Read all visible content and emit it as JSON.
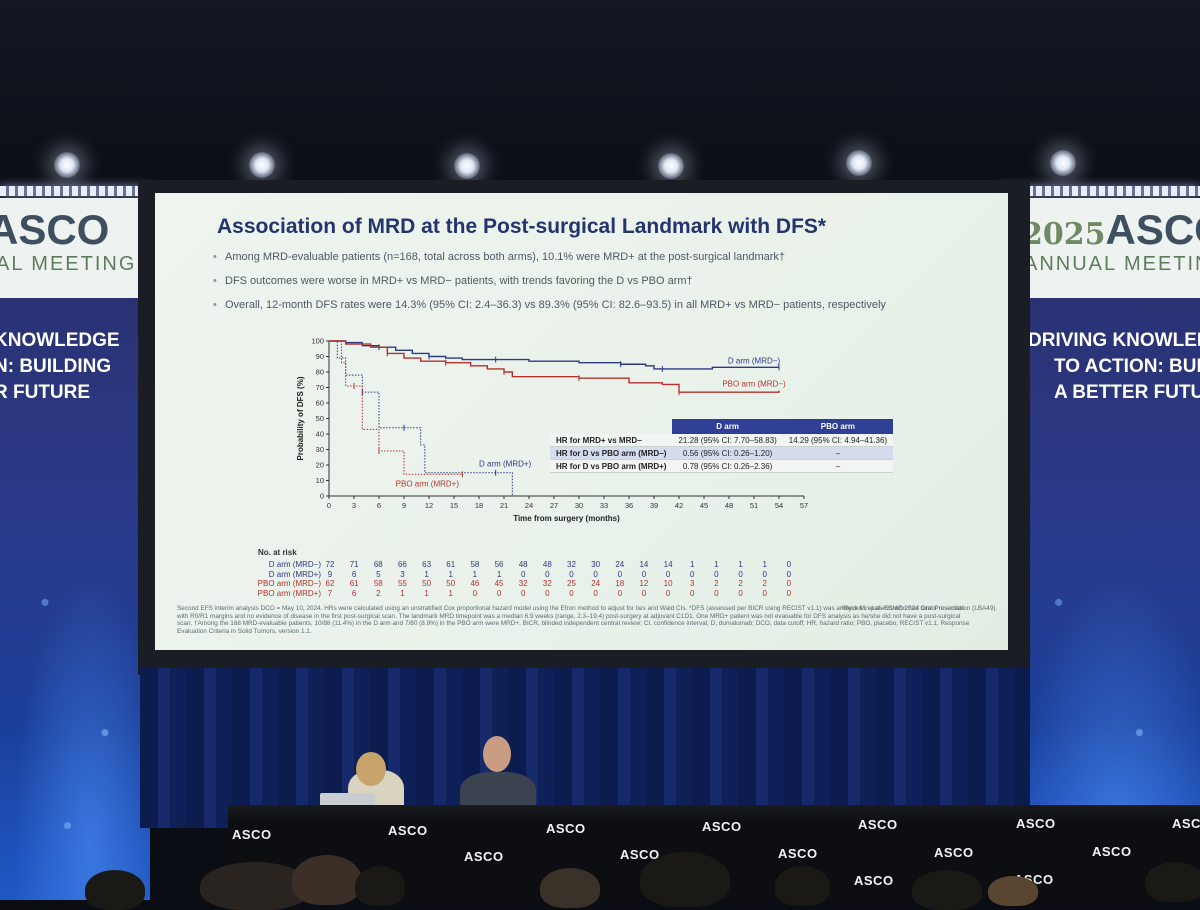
{
  "venue": {
    "left_banner": {
      "logo": "ASCO",
      "subtitle": "AL MEETING",
      "slogan_lines": [
        "KNOWLEDGE",
        "N: BUILDING",
        "R FUTURE"
      ]
    },
    "right_banner": {
      "year": "2025",
      "logo": "ASCO",
      "subtitle": "ANNUAL MEETING",
      "slogan_lines": [
        "DRIVING KNOWLEDGE",
        "TO ACTION: BUILDI",
        "A BETTER FUTURE"
      ]
    },
    "podium_logo": "ASCO"
  },
  "slide": {
    "title": "Association of MRD at the Post-surgical Landmark with DFS*",
    "bullets": [
      "Among MRD-evaluable patients (n=168, total across both arms), 10.1% were MRD+ at the post-surgical landmark†",
      "DFS outcomes were worse in MRD+ vs MRD− patients, with trends favoring the D vs PBO arm†",
      "Overall, 12-month DFS rates were 14.3% (95% CI: 2.4–36.3) vs 89.3% (95% CI: 82.6–93.5) in all MRD+ vs MRD− patients, respectively"
    ],
    "hr_table": {
      "headers": [
        "",
        "D arm",
        "PBO arm"
      ],
      "rows": [
        [
          "HR for MRD+ vs MRD−",
          "21.28 (95% CI: 7.70–58.83)",
          "14.29 (95% CI: 4.94–41.36)"
        ],
        [
          "HR for D vs PBO arm (MRD−)",
          "0.56 (95% CI: 0.26–1.20)",
          "–"
        ],
        [
          "HR for D vs PBO arm (MRD+)",
          "0.78 (95% CI: 0.26–2.36)",
          "–"
        ]
      ]
    },
    "risk_table": {
      "title": "No. at risk",
      "rows": [
        {
          "label": "D arm (MRD−)",
          "color": "#2b3a86",
          "values": [
            72,
            71,
            68,
            66,
            63,
            61,
            58,
            56,
            48,
            48,
            32,
            30,
            24,
            14,
            14,
            1,
            1,
            1,
            1,
            0
          ]
        },
        {
          "label": "D arm (MRD+)",
          "color": "#2b3a86",
          "values": [
            9,
            6,
            5,
            3,
            1,
            1,
            1,
            1,
            0,
            0,
            0,
            0,
            0,
            0,
            0,
            0,
            0,
            0,
            0,
            0
          ]
        },
        {
          "label": "PBO arm (MRD−)",
          "color": "#b3322e",
          "values": [
            62,
            61,
            58,
            55,
            50,
            50,
            46,
            45,
            32,
            32,
            25,
            24,
            18,
            12,
            10,
            3,
            2,
            2,
            2,
            0
          ]
        },
        {
          "label": "PBO arm (MRD+)",
          "color": "#b3322e",
          "values": [
            7,
            6,
            2,
            1,
            1,
            1,
            0,
            0,
            0,
            0,
            0,
            0,
            0,
            0,
            0,
            0,
            0,
            0,
            0,
            0
          ]
        }
      ]
    },
    "footnote": "Second EFS interim analysis DCO = May 10, 2024. HRs were calculated using an unstratified Cox proportional hazard model using the Efron method to adjust for ties and Wald CIs. *DFS (assessed per BICR using RECIST v1.1) was analyzed in patients who had tumor resection with R0/R1 margins and no evidence of disease in the first post-surgical scan. The landmark MRD timepoint was a median 6.9 weeks (range, 2.3–19.4) post-surgery at adjuvant C1D1. One MRD+ patient was not evaluable for DFS analysis as he/she did not have a post-surgical scan. †Among the 168 MRD-evaluable patients, 10/88 (11.4%) in the D arm and 7/80 (8.8%) in the PBO arm were MRD+. BICR, blinded independent central review; CI, confidence interval; D, durvalumab; DCO, data cutoff; HR, hazard ratio; PBO, placebo; RECIST v1.1, Response Evaluation Criteria in Solid Tumors, version 1.1.",
    "reference": "¹Reck M, et al. ESMO 2024 Oral Presentation (LBA49)."
  },
  "chart_data": {
    "type": "line",
    "title": "",
    "xlabel": "Time from surgery (months)",
    "ylabel": "Probability of DFS (%)",
    "xlim": [
      0,
      57
    ],
    "ylim": [
      0,
      100
    ],
    "x_ticks": [
      0,
      3,
      6,
      9,
      12,
      15,
      18,
      21,
      24,
      27,
      30,
      33,
      36,
      39,
      42,
      45,
      48,
      51,
      54,
      57
    ],
    "y_ticks": [
      0,
      10,
      20,
      30,
      40,
      50,
      60,
      70,
      80,
      90,
      100
    ],
    "legend": "curve labels",
    "series": [
      {
        "name": "D arm (MRD−)",
        "color": "#2b3a86",
        "style": "solid",
        "points": [
          [
            0,
            100
          ],
          [
            2,
            99
          ],
          [
            4,
            97
          ],
          [
            6,
            96
          ],
          [
            8,
            94
          ],
          [
            10,
            92
          ],
          [
            12,
            90
          ],
          [
            14,
            89
          ],
          [
            16,
            88
          ],
          [
            20,
            88
          ],
          [
            24,
            87
          ],
          [
            30,
            86
          ],
          [
            35,
            85
          ],
          [
            38,
            84
          ],
          [
            39,
            82
          ],
          [
            40,
            82
          ],
          [
            44,
            82
          ],
          [
            46,
            83
          ],
          [
            54,
            83
          ]
        ]
      },
      {
        "name": "PBO arm (MRD−)",
        "color": "#b3322e",
        "style": "solid",
        "points": [
          [
            0,
            100
          ],
          [
            2,
            98
          ],
          [
            5,
            96
          ],
          [
            7,
            92
          ],
          [
            9,
            89
          ],
          [
            11,
            87
          ],
          [
            14,
            86
          ],
          [
            17,
            84
          ],
          [
            19,
            82
          ],
          [
            21,
            80
          ],
          [
            22,
            77
          ],
          [
            26,
            77
          ],
          [
            30,
            76
          ],
          [
            36,
            73
          ],
          [
            40,
            72
          ],
          [
            42,
            67
          ],
          [
            48,
            67
          ],
          [
            54,
            68
          ]
        ]
      },
      {
        "name": "D arm (MRD+)",
        "color": "#2b3a86",
        "style": "dotted",
        "points": [
          [
            0,
            100
          ],
          [
            1,
            89
          ],
          [
            2,
            78
          ],
          [
            4,
            67
          ],
          [
            5.5,
            67
          ],
          [
            6,
            44
          ],
          [
            9,
            44
          ],
          [
            11,
            33
          ],
          [
            11.5,
            15
          ],
          [
            20,
            15
          ],
          [
            22,
            13
          ],
          [
            22,
            0
          ]
        ]
      },
      {
        "name": "PBO arm (MRD+)",
        "color": "#b3322e",
        "style": "dotted",
        "points": [
          [
            0,
            100
          ],
          [
            1.5,
            86
          ],
          [
            2,
            71
          ],
          [
            3,
            71
          ],
          [
            4,
            43
          ],
          [
            5.5,
            43
          ],
          [
            6,
            29
          ],
          [
            8.5,
            29
          ],
          [
            9,
            14
          ],
          [
            16,
            14
          ],
          [
            16,
            15
          ]
        ]
      }
    ]
  }
}
